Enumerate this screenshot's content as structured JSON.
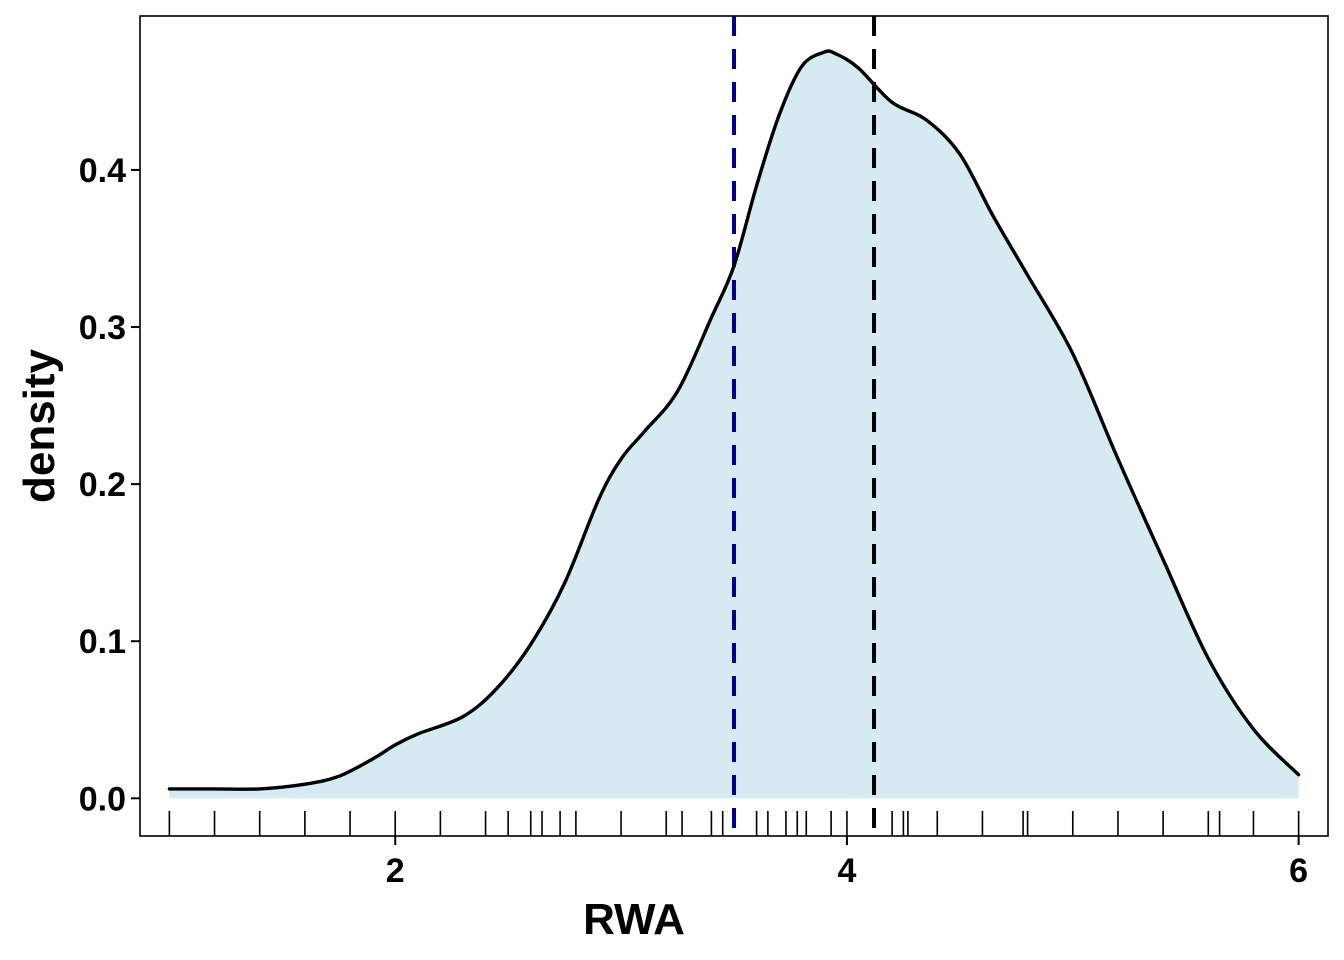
{
  "chart_data": {
    "type": "area",
    "title": "",
    "xlabel": "RWA",
    "ylabel": "density",
    "xlim": [
      0.87,
      6.13
    ],
    "ylim": [
      -0.024,
      0.498
    ],
    "x_ticks": [
      {
        "value": 2,
        "label": "2"
      },
      {
        "value": 4,
        "label": "4"
      },
      {
        "value": 6,
        "label": "6"
      }
    ],
    "y_ticks": [
      {
        "value": 0.0,
        "label": "0.0"
      },
      {
        "value": 0.1,
        "label": "0.1"
      },
      {
        "value": 0.2,
        "label": "0.2"
      },
      {
        "value": 0.3,
        "label": "0.3"
      },
      {
        "value": 0.4,
        "label": "0.4"
      }
    ],
    "grid": false,
    "fill_color": "#d6eaf2",
    "line_color": "#000000",
    "density_curve": {
      "x": [
        1.0,
        1.2,
        1.4,
        1.6,
        1.75,
        1.9,
        2.0,
        2.1,
        2.3,
        2.45,
        2.6,
        2.75,
        2.9,
        3.0,
        3.1,
        3.25,
        3.4,
        3.5,
        3.6,
        3.7,
        3.8,
        3.9,
        3.95,
        4.05,
        4.2,
        4.35,
        4.5,
        4.65,
        4.8,
        5.0,
        5.2,
        5.4,
        5.6,
        5.8,
        6.0
      ],
      "y": [
        0.006,
        0.006,
        0.006,
        0.009,
        0.014,
        0.025,
        0.034,
        0.041,
        0.052,
        0.07,
        0.098,
        0.137,
        0.19,
        0.216,
        0.233,
        0.259,
        0.306,
        0.339,
        0.39,
        0.435,
        0.466,
        0.475,
        0.474,
        0.465,
        0.443,
        0.432,
        0.41,
        0.37,
        0.333,
        0.283,
        0.216,
        0.152,
        0.089,
        0.044,
        0.015
      ]
    },
    "vlines": [
      {
        "x": 3.5,
        "color": "#00008b",
        "style": "dashed"
      },
      {
        "x": 4.12,
        "color": "#000000",
        "style": "dashed"
      }
    ],
    "rug": [
      1.0,
      1.2,
      1.4,
      1.6,
      1.8,
      2.0,
      2.2,
      2.4,
      2.5,
      2.6,
      2.65,
      2.73,
      2.8,
      3.0,
      3.2,
      3.27,
      3.4,
      3.45,
      3.6,
      3.65,
      3.73,
      3.78,
      3.82,
      3.93,
      4.0,
      4.2,
      4.25,
      4.27,
      4.4,
      4.6,
      4.78,
      4.8,
      5.0,
      5.2,
      5.4,
      5.6,
      5.65,
      5.8,
      6.0
    ]
  }
}
